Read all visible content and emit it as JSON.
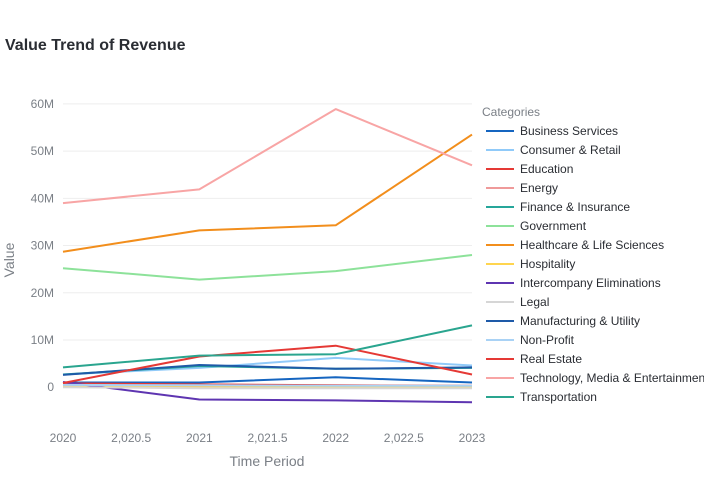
{
  "chart_data": {
    "type": "line",
    "title": "Value Trend of Revenue",
    "xlabel": "Time Period",
    "ylabel": "Value",
    "x": [
      2020,
      2021,
      2022,
      2023
    ],
    "xlim": [
      2020,
      2023
    ],
    "ylim": [
      -8,
      64
    ],
    "x_ticks": [
      2020,
      2020.5,
      2021,
      2021.5,
      2022,
      2022.5,
      2023
    ],
    "x_tick_labels": [
      "2020",
      "2,020.5",
      "2021",
      "2,021.5",
      "2022",
      "2,022.5",
      "2023"
    ],
    "y_ticks": [
      0,
      10,
      20,
      30,
      40,
      50,
      60
    ],
    "y_tick_labels": [
      "0",
      "10M",
      "20M",
      "30M",
      "40M",
      "50M",
      "60M"
    ],
    "grid": true,
    "legend_title": "Categories",
    "legend_position": "right",
    "series": [
      {
        "name": "Business Services",
        "color": "#1565c0",
        "values": [
          1.0,
          1.0,
          2.1,
          1.0
        ]
      },
      {
        "name": "Consumer & Retail",
        "color": "#90caf9",
        "values": [
          2.7,
          4.1,
          6.2,
          4.6
        ]
      },
      {
        "name": "Education",
        "color": "#e53935",
        "values": [
          0.8,
          0.6,
          0.4,
          0.3
        ]
      },
      {
        "name": "Energy",
        "color": "#ef9a9a",
        "values": [
          0.3,
          0.2,
          0.1,
          0.0
        ]
      },
      {
        "name": "Finance & Insurance",
        "color": "#26a69a",
        "values": [
          2.7,
          4.5,
          3.9,
          4.1
        ]
      },
      {
        "name": "Government",
        "color": "#8de29a",
        "values": [
          25.2,
          22.8,
          24.6,
          28.0
        ]
      },
      {
        "name": "Healthcare & Life Sciences",
        "color": "#f28e1c",
        "values": [
          28.7,
          33.2,
          34.3,
          53.5
        ]
      },
      {
        "name": "Hospitality",
        "color": "#ffd54f",
        "values": [
          0.1,
          0.0,
          0.0,
          0.0
        ]
      },
      {
        "name": "Intercompany Eliminations",
        "color": "#5e35b1",
        "values": [
          1.1,
          -2.6,
          -2.8,
          -3.2
        ]
      },
      {
        "name": "Legal",
        "color": "#d6d6d6",
        "values": [
          0.0,
          -0.2,
          -0.2,
          -0.2
        ]
      },
      {
        "name": "Manufacturing & Utility",
        "color": "#1e5aa8",
        "values": [
          2.6,
          4.7,
          3.9,
          4.2
        ]
      },
      {
        "name": "Non-Profit",
        "color": "#a9d2f5",
        "values": [
          0.5,
          0.4,
          0.3,
          0.3
        ]
      },
      {
        "name": "Real Estate",
        "color": "#e53935",
        "values": [
          0.9,
          6.5,
          8.8,
          2.7
        ]
      },
      {
        "name": "Technology, Media & Entertainment",
        "color": "#f8a5a5",
        "values": [
          39.0,
          41.9,
          58.9,
          47.0
        ]
      },
      {
        "name": "Transportation",
        "color": "#2aa58f",
        "values": [
          4.2,
          6.7,
          7.0,
          13.1
        ]
      }
    ]
  }
}
